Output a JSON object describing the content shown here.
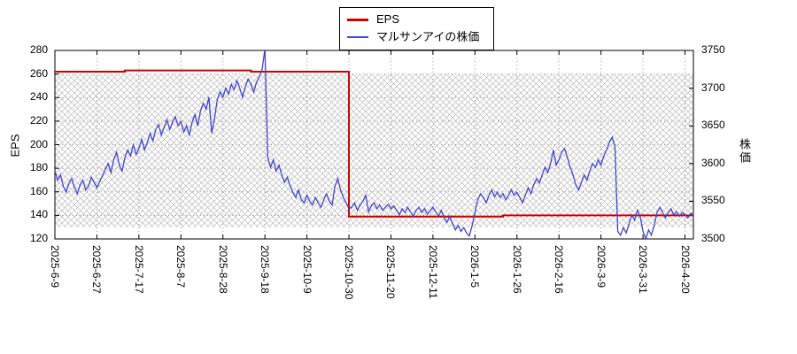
{
  "legend": {
    "items": [
      {
        "label": "EPS",
        "color": "#cc0000"
      },
      {
        "label": "マルサンアイの株価",
        "color": "#4444cc"
      }
    ]
  },
  "chart_data": {
    "type": "line",
    "title": "",
    "grid": "dotted",
    "grid_color": "#999999",
    "legend_position": "top-center",
    "x_axis": {
      "tick_labels": [
        "2025-6-9",
        "2025-6-27",
        "2025-7-17",
        "2025-8-7",
        "2025-8-28",
        "2025-9-18",
        "2025-10-9",
        "2025-10-30",
        "2025-11-20",
        "2025-12-11",
        "2026-1-5",
        "2026-1-26",
        "2026-2-16",
        "2026-3-9",
        "2026-3-31",
        "2026-4-20"
      ],
      "tick_days": [
        0,
        15,
        30,
        45,
        60,
        75,
        90,
        105,
        120,
        135,
        150,
        165,
        180,
        195,
        210,
        225
      ],
      "total_days": 228
    },
    "y_left": {
      "label": "EPS",
      "min": 120,
      "max": 280,
      "ticks": [
        120,
        140,
        160,
        180,
        200,
        220,
        240,
        260,
        280
      ]
    },
    "y_right": {
      "label": "株価",
      "min": 3500,
      "max": 3750,
      "ticks": [
        3500,
        3550,
        3600,
        3650,
        3700,
        3750
      ]
    },
    "band": {
      "axis": "left",
      "from": 130,
      "to": 260,
      "style": "crosshatch",
      "hatch_color": "#bbbbbb"
    },
    "series": [
      {
        "name": "EPS",
        "axis": "left",
        "color": "#cc0000",
        "type": "step",
        "points": [
          [
            0,
            262
          ],
          [
            25,
            262
          ],
          [
            25,
            263
          ],
          [
            70,
            263
          ],
          [
            70,
            262
          ],
          [
            105,
            262
          ],
          [
            105,
            139
          ],
          [
            160,
            139
          ],
          [
            160,
            140
          ],
          [
            228,
            140
          ]
        ]
      },
      {
        "name": "マルサンアイの株価",
        "axis": "right",
        "color": "#4444cc",
        "type": "line",
        "values": [
          3590,
          3578,
          3585,
          3570,
          3562,
          3574,
          3580,
          3568,
          3560,
          3572,
          3578,
          3565,
          3570,
          3582,
          3575,
          3568,
          3576,
          3584,
          3592,
          3600,
          3588,
          3605,
          3615,
          3598,
          3590,
          3608,
          3618,
          3610,
          3625,
          3612,
          3620,
          3632,
          3618,
          3628,
          3640,
          3630,
          3645,
          3652,
          3638,
          3648,
          3658,
          3645,
          3655,
          3662,
          3650,
          3656,
          3642,
          3650,
          3638,
          3655,
          3665,
          3650,
          3670,
          3680,
          3672,
          3688,
          3640,
          3660,
          3685,
          3695,
          3688,
          3700,
          3692,
          3705,
          3698,
          3710,
          3700,
          3688,
          3702,
          3712,
          3705,
          3695,
          3708,
          3715,
          3725,
          3752,
          3608,
          3595,
          3605,
          3590,
          3598,
          3585,
          3575,
          3582,
          3570,
          3562,
          3555,
          3565,
          3552,
          3548,
          3558,
          3550,
          3545,
          3555,
          3548,
          3542,
          3552,
          3560,
          3550,
          3545,
          3570,
          3580,
          3565,
          3555,
          3548,
          3540,
          3542,
          3548,
          3538,
          3545,
          3550,
          3558,
          3536,
          3544,
          3548,
          3540,
          3545,
          3538,
          3542,
          3546,
          3540,
          3544,
          3538,
          3532,
          3540,
          3535,
          3542,
          3536,
          3530,
          3538,
          3542,
          3535,
          3540,
          3533,
          3537,
          3542,
          3536,
          3530,
          3538,
          3528,
          3522,
          3530,
          3520,
          3512,
          3518,
          3510,
          3515,
          3508,
          3504,
          3518,
          3535,
          3552,
          3560,
          3555,
          3548,
          3558,
          3565,
          3556,
          3562,
          3555,
          3560,
          3552,
          3558,
          3565,
          3558,
          3562,
          3555,
          3548,
          3558,
          3568,
          3560,
          3572,
          3580,
          3574,
          3585,
          3595,
          3588,
          3600,
          3618,
          3598,
          3605,
          3615,
          3620,
          3608,
          3595,
          3585,
          3572,
          3565,
          3575,
          3585,
          3578,
          3590,
          3600,
          3595,
          3605,
          3598,
          3610,
          3618,
          3628,
          3635,
          3622,
          3510,
          3505,
          3515,
          3508,
          3520,
          3532,
          3525,
          3538,
          3530,
          3510,
          3500,
          3512,
          3505,
          3518,
          3535,
          3542,
          3535,
          3528,
          3535,
          3540,
          3532,
          3536,
          3530,
          3535,
          3532,
          3528,
          3534,
          3532
        ]
      }
    ]
  }
}
